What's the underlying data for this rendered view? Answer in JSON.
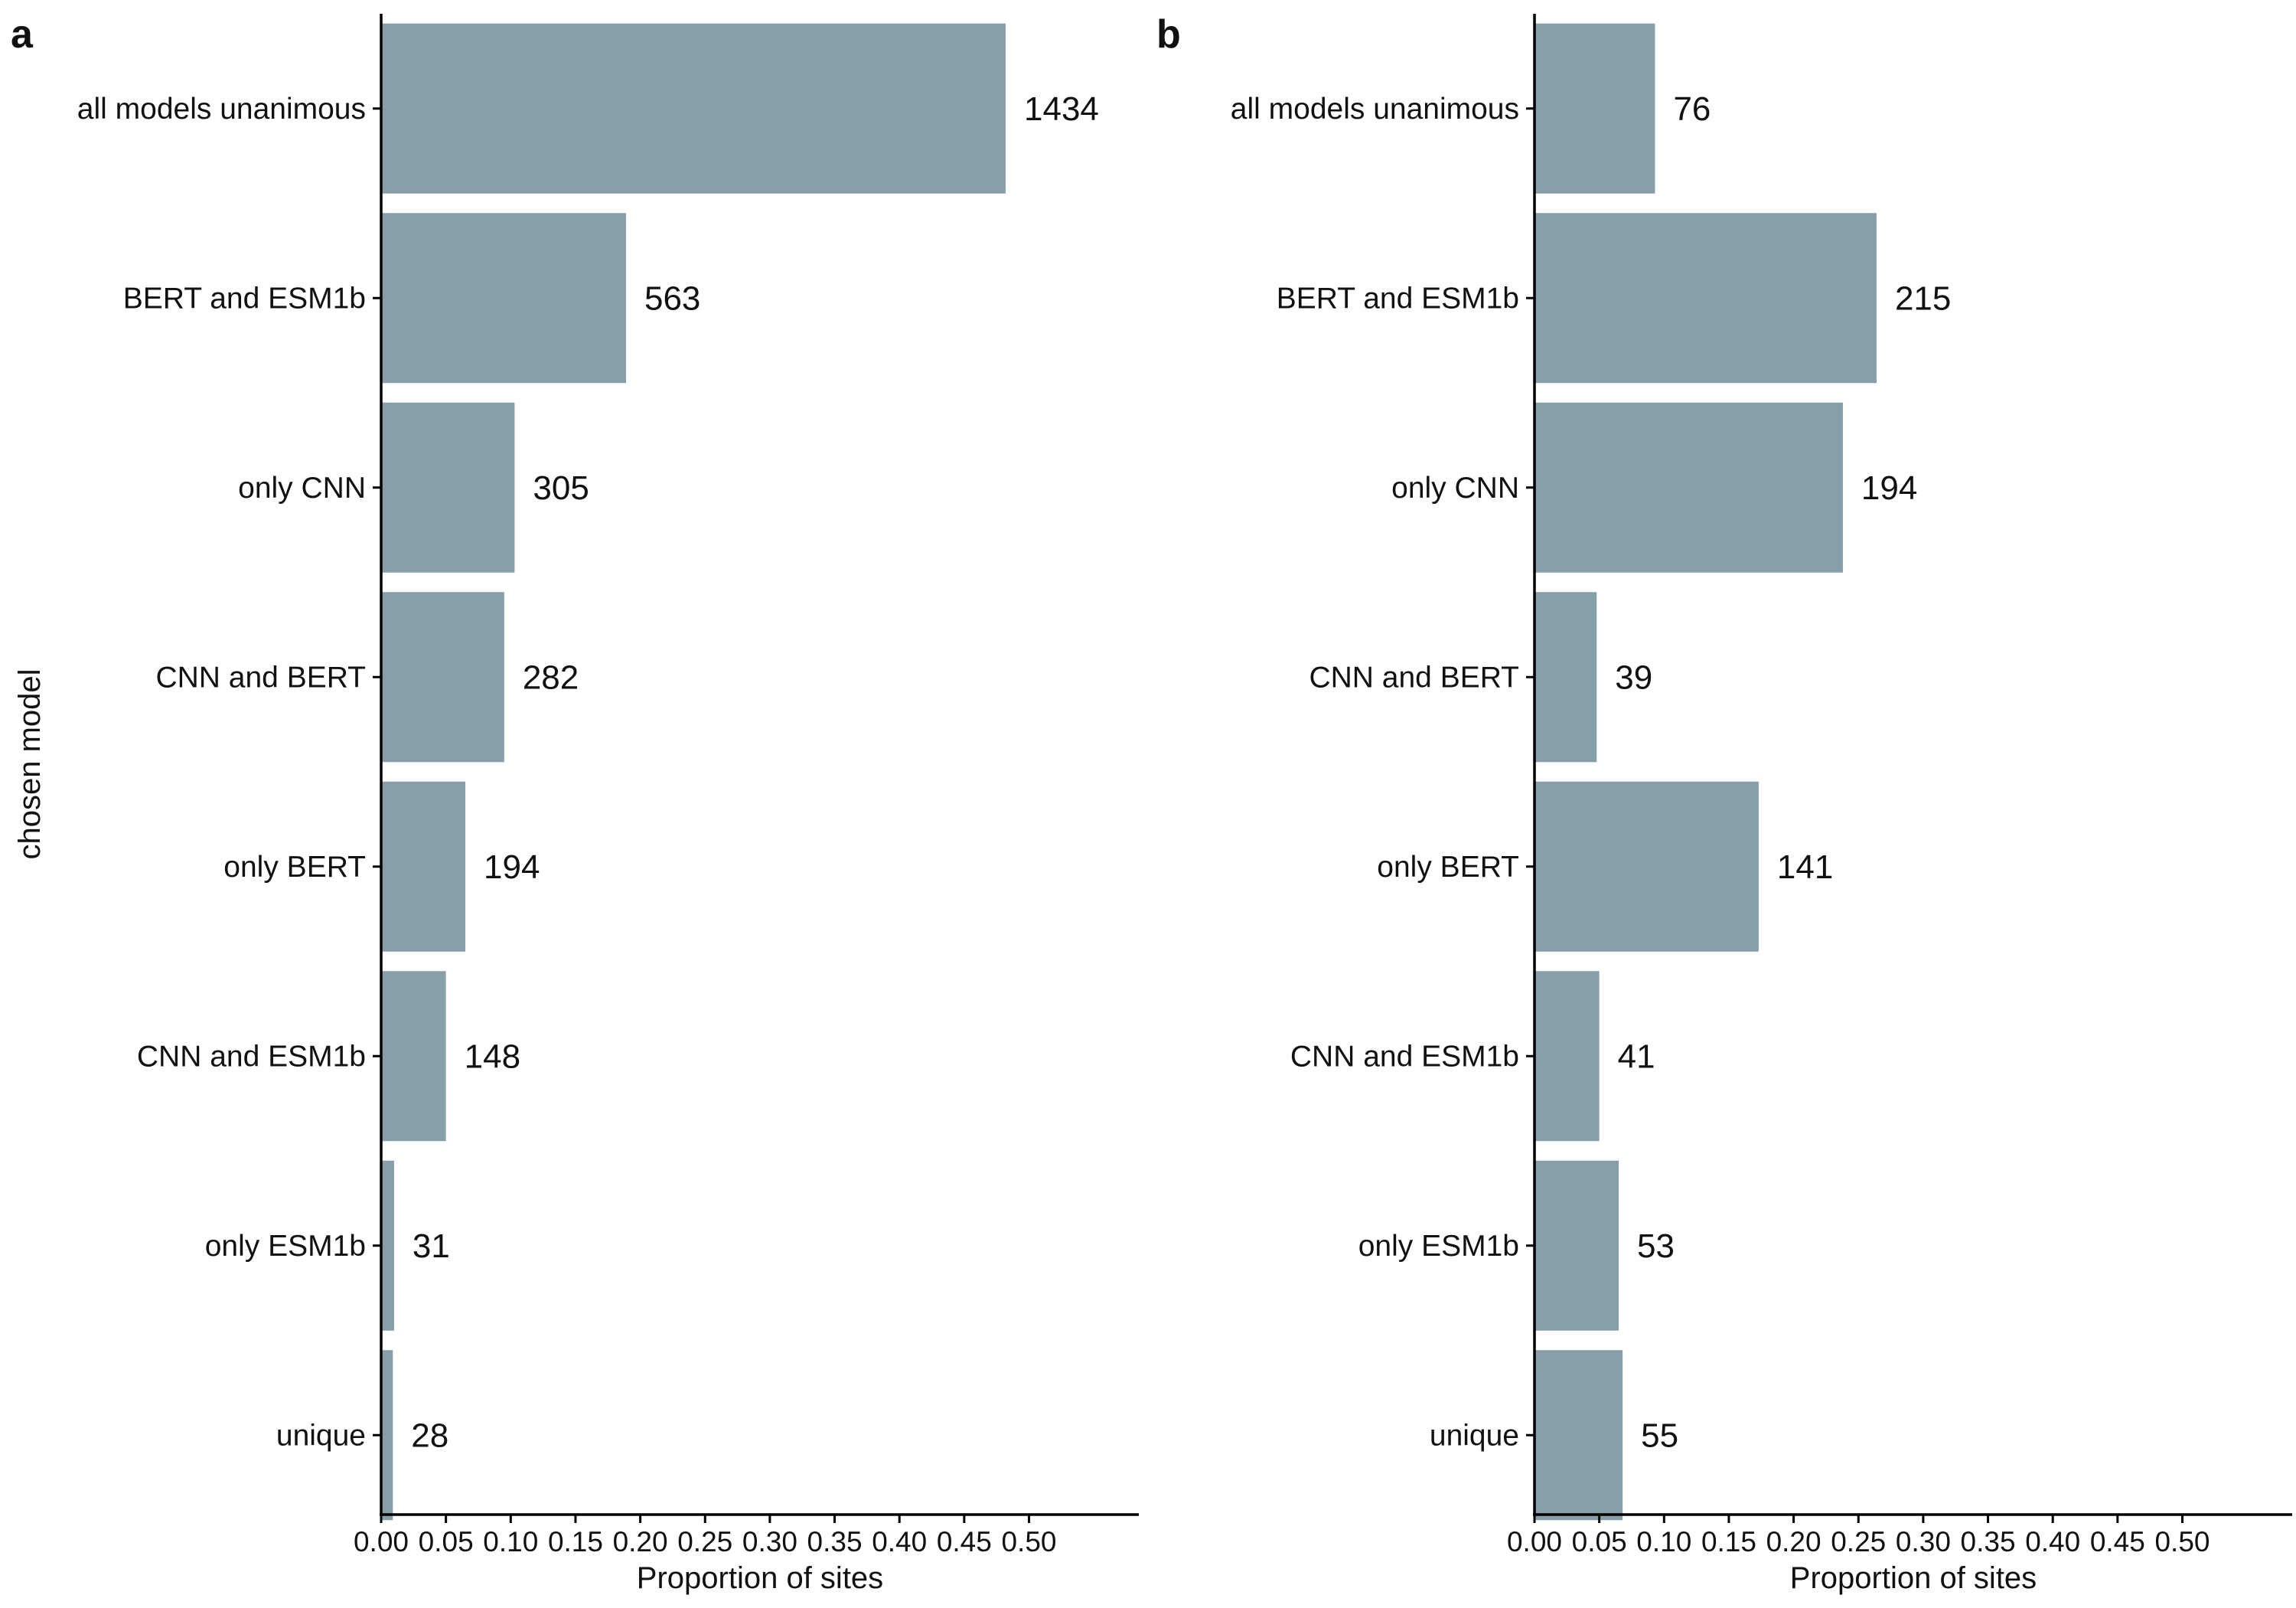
{
  "chart_data": [
    {
      "type": "bar",
      "orientation": "horizontal",
      "panel_label": "a",
      "categories": [
        "all models unanimous",
        "BERT and ESM1b",
        "only CNN",
        "CNN and BERT",
        "only BERT",
        "CNN and ESM1b",
        "only ESM1b",
        "unique"
      ],
      "counts": [
        1434,
        563,
        305,
        282,
        194,
        148,
        31,
        28
      ],
      "values": [
        0.482,
        0.189,
        0.103,
        0.095,
        0.065,
        0.05,
        0.01,
        0.009
      ],
      "xlabel": "Proportion of sites",
      "ylabel": "chosen model",
      "xlim": [
        0,
        0.56
      ],
      "xticks": [
        0.0,
        0.05,
        0.1,
        0.15,
        0.2,
        0.25,
        0.3,
        0.35,
        0.4,
        0.45,
        0.5
      ],
      "xtick_labels": [
        "0.00",
        "0.05",
        "0.10",
        "0.15",
        "0.20",
        "0.25",
        "0.30",
        "0.35",
        "0.40",
        "0.45",
        "0.50"
      ],
      "color": "#879fa8",
      "grid": false
    },
    {
      "type": "bar",
      "orientation": "horizontal",
      "panel_label": "b",
      "categories": [
        "all models unanimous",
        "BERT and ESM1b",
        "only CNN",
        "CNN and BERT",
        "only BERT",
        "CNN and ESM1b",
        "only ESM1b",
        "unique"
      ],
      "counts": [
        76,
        215,
        194,
        39,
        141,
        41,
        53,
        55
      ],
      "values": [
        0.093,
        0.264,
        0.238,
        0.048,
        0.173,
        0.05,
        0.065,
        0.068
      ],
      "xlabel": "Proportion of sites",
      "ylabel": "",
      "xlim": [
        0,
        0.56
      ],
      "xticks": [
        0.0,
        0.05,
        0.1,
        0.15,
        0.2,
        0.25,
        0.3,
        0.35,
        0.4,
        0.45,
        0.5
      ],
      "xtick_labels": [
        "0.00",
        "0.05",
        "0.10",
        "0.15",
        "0.20",
        "0.25",
        "0.30",
        "0.35",
        "0.40",
        "0.45",
        "0.50"
      ],
      "color": "#879fa8",
      "grid": false
    }
  ]
}
